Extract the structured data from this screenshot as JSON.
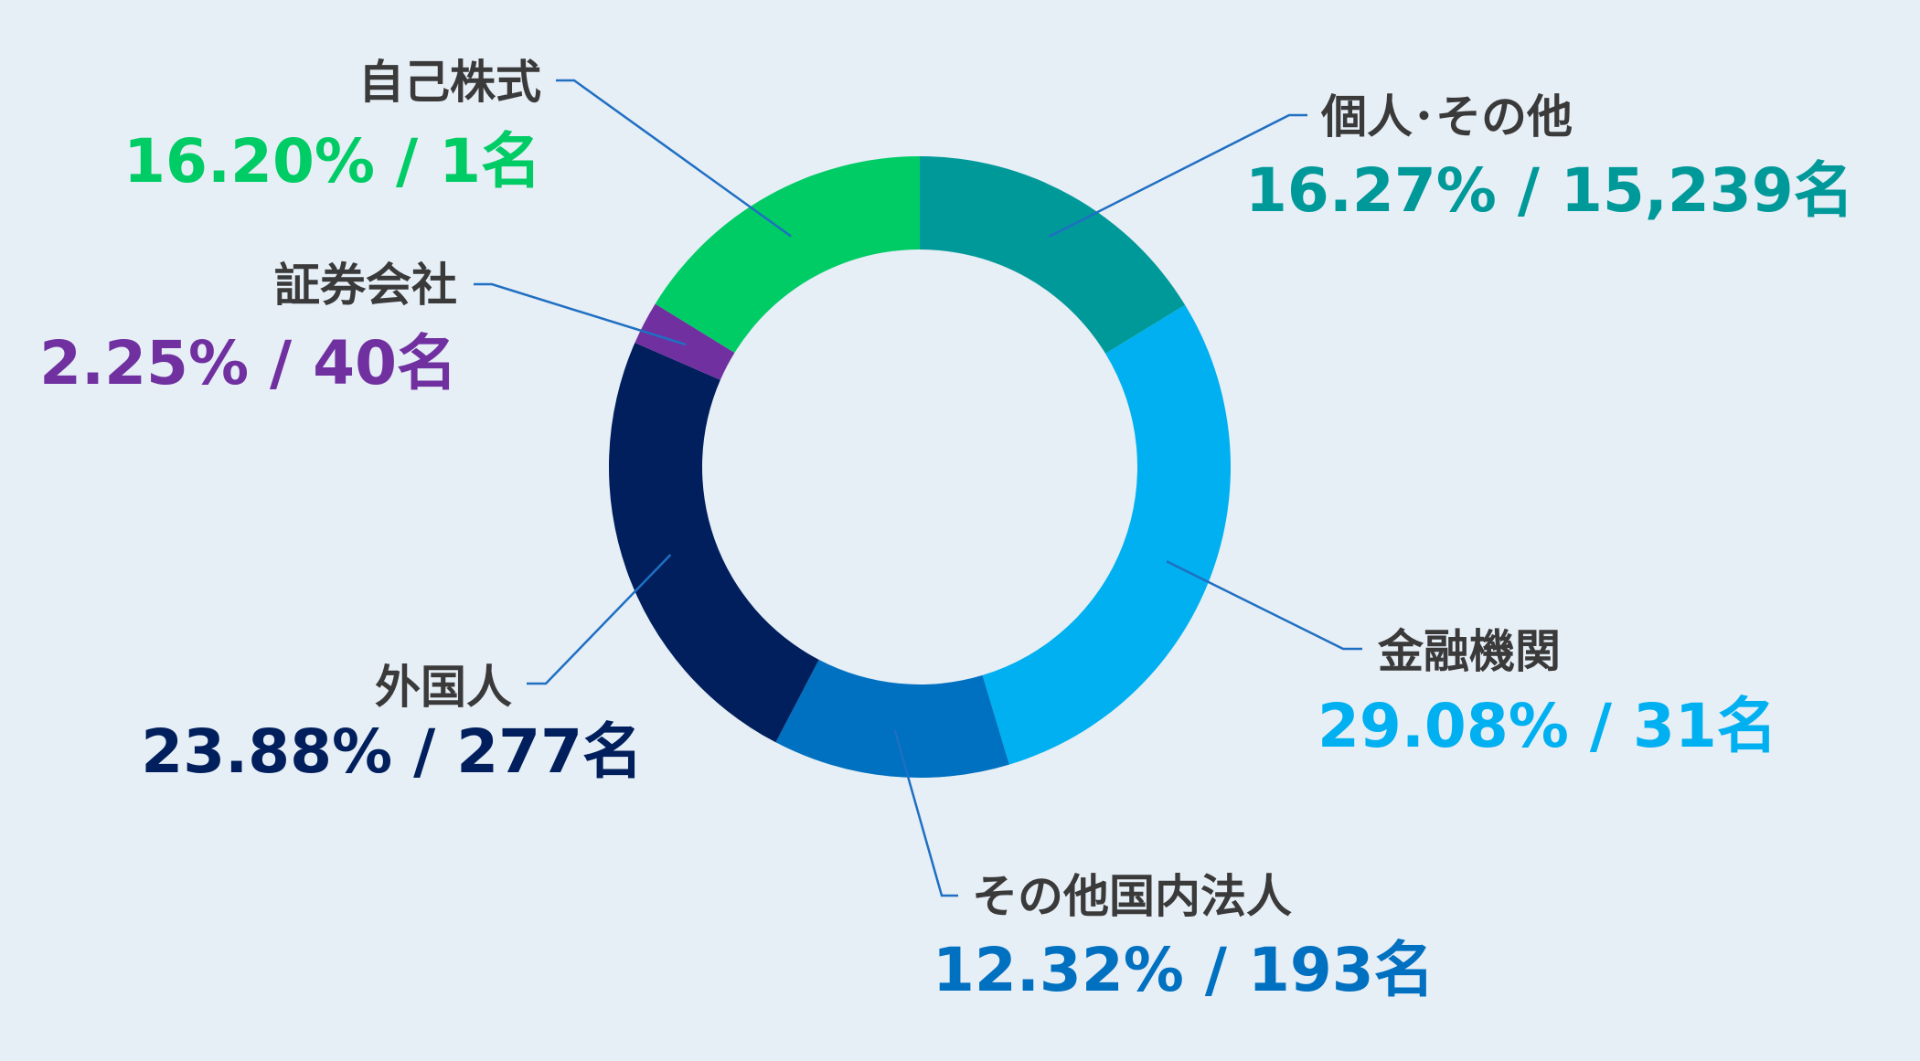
{
  "chart_data": {
    "type": "pie",
    "style": "donut",
    "start_angle_deg": 0,
    "direction": "clockwise",
    "slices": [
      {
        "name": "個人･その他",
        "value": 16.27,
        "count_label": "15,239名",
        "value_label": "16.27% / 15,239名",
        "color": "#009999"
      },
      {
        "name": "金融機関",
        "value": 29.08,
        "count_label": "31名",
        "value_label": "29.08% / 31名",
        "color": "#00b0f0"
      },
      {
        "name": "その他国内法人",
        "value": 12.32,
        "count_label": "193名",
        "value_label": "12.32% / 193名",
        "color": "#0070c0"
      },
      {
        "name": "外国人",
        "value": 23.88,
        "count_label": "277名",
        "value_label": "23.88% / 277名",
        "color": "#001f5c"
      },
      {
        "name": "証券会社",
        "value": 2.25,
        "count_label": "40名",
        "value_label": "2.25% / 40名",
        "color": "#7030a0"
      },
      {
        "name": "自己株式",
        "value": 16.2,
        "count_label": "1名",
        "value_label": "16.20% / 1名",
        "color": "#00cc66"
      }
    ]
  }
}
